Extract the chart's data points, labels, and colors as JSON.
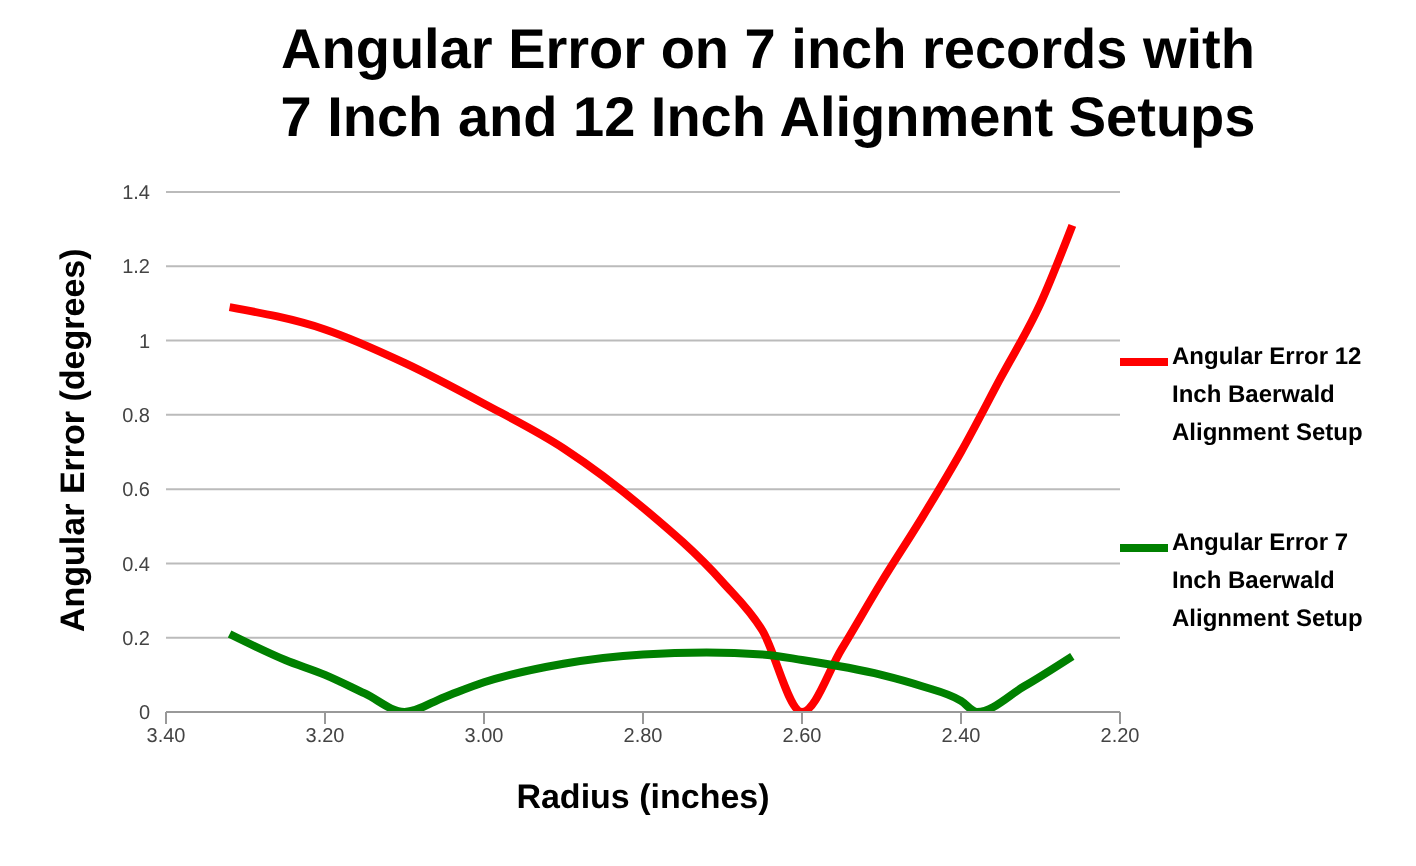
{
  "chart_data": {
    "type": "line",
    "title": "Angular Error on 7 inch records with\n7 Inch and 12 Inch Alignment Setups",
    "xlabel": "Radius (inches)",
    "ylabel": "Angular Error (degrees)",
    "series": [
      {
        "name": "Angular Error 12 Inch Baerwald Alignment Setup",
        "color": "#ff0000",
        "x": [
          3.32,
          3.2,
          3.1,
          3.0,
          2.9,
          2.8,
          2.7,
          2.65,
          2.6,
          2.55,
          2.5,
          2.45,
          2.4,
          2.35,
          2.3,
          2.26
        ],
        "values": [
          1.09,
          1.03,
          0.94,
          0.83,
          0.71,
          0.55,
          0.35,
          0.22,
          0,
          0.17,
          0.35,
          0.52,
          0.7,
          0.9,
          1.1,
          1.31
        ]
      },
      {
        "name": "Angular Error 7 Inch Baerwald Alignment Setup",
        "color": "#008000",
        "x": [
          3.32,
          3.25,
          3.2,
          3.15,
          3.1,
          3.05,
          3.0,
          2.9,
          2.8,
          2.72,
          2.65,
          2.6,
          2.5,
          2.45,
          2.4,
          2.38,
          2.32,
          2.26
        ],
        "values": [
          0.21,
          0.14,
          0.1,
          0.05,
          0,
          0.04,
          0.08,
          0.13,
          0.155,
          0.16,
          0.155,
          0.14,
          0.1,
          0.07,
          0.03,
          0,
          0.07,
          0.15
        ]
      }
    ],
    "xlim": [
      3.4,
      2.2
    ],
    "xticks": [
      {
        "value": 3.4,
        "label": "3.40"
      },
      {
        "value": 3.2,
        "label": "3.20"
      },
      {
        "value": 3.0,
        "label": "3.00"
      },
      {
        "value": 2.8,
        "label": "2.80"
      },
      {
        "value": 2.6,
        "label": "2.60"
      },
      {
        "value": 2.4,
        "label": "2.40"
      },
      {
        "value": 2.2,
        "label": "2.20"
      }
    ],
    "ylim": [
      0,
      1.4
    ],
    "yticks": [
      0,
      0.2,
      0.4,
      0.6,
      0.8,
      1,
      1.2,
      1.4
    ],
    "grid": "y",
    "legend": "right",
    "marker": "none",
    "line_style": "solid"
  }
}
